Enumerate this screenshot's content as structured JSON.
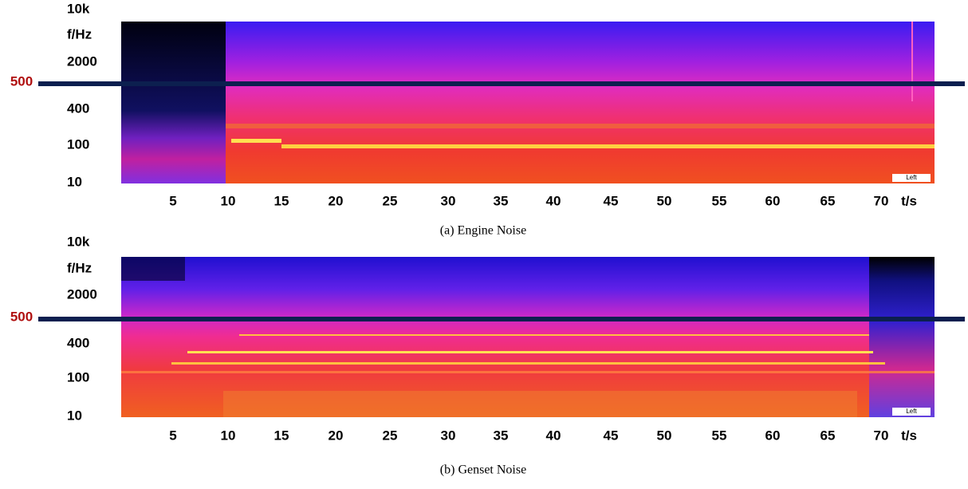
{
  "panels": [
    {
      "caption": "(a) Engine Noise",
      "y_labels": [
        "10k",
        "f/Hz",
        "2000",
        "400",
        "100",
        "10"
      ],
      "marker": "500",
      "x_labels": [
        5,
        10,
        15,
        20,
        25,
        30,
        35,
        40,
        45,
        50,
        55,
        60,
        65,
        70
      ],
      "x_unit": "t/s",
      "legend": "Left"
    },
    {
      "caption": "(b) Genset Noise",
      "y_labels": [
        "10k",
        "f/Hz",
        "2000",
        "400",
        "100",
        "10"
      ],
      "marker": "500",
      "x_labels": [
        5,
        10,
        15,
        20,
        25,
        30,
        35,
        40,
        45,
        50,
        55,
        60,
        65,
        70
      ],
      "x_unit": "t/s",
      "legend": "Left"
    }
  ]
}
